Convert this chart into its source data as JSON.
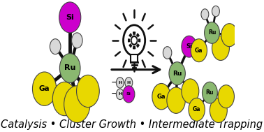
{
  "background_color": "#ffffff",
  "text_bottom": "Catalysis • Cluster Growth • Intermediate Trapping",
  "text_fontsize": 10.5,
  "colors": {
    "Ru": "#8ab870",
    "Ga": "#e8d800",
    "Si": "#cc00cc",
    "H": "#d8d8d8",
    "bond": "#111111",
    "arrow": "#111111",
    "light": "#111111"
  }
}
